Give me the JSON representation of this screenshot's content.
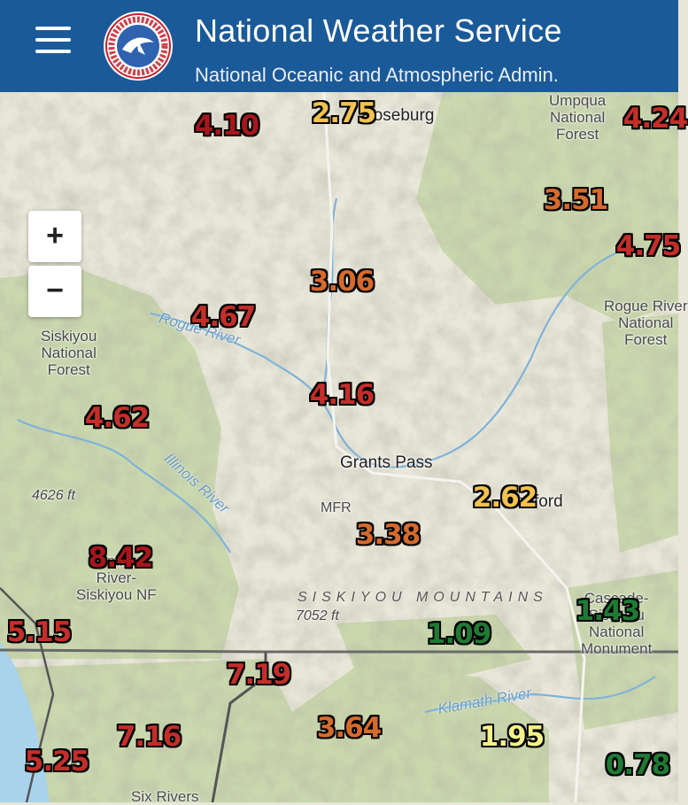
{
  "header": {
    "title": "National Weather Service",
    "subtitle": "National Oceanic and Atmospheric Admin.",
    "logo_text": "NATIONAL WEATHER SERVICE",
    "bg_color": "#1b5a99",
    "menu_icon": "hamburger-menu-icon"
  },
  "map": {
    "zoom_in_label": "+",
    "zoom_out_label": "−",
    "labels": {
      "roseburg": "Roseburg",
      "grants_pass": "Grants Pass",
      "medford": "Medford",
      "mfr": "MFR",
      "siskiyou_nf": "Siskiyou\nNational\nForest",
      "umpqua_nf": "Umpqua\nNational\nForest",
      "rogue_river_nf": "Rogue River\nNational\nForest",
      "rogue_river": "Rogue River",
      "illinois_river": "Illinois River",
      "klamath_river": "Klamath River",
      "siskiyou_mountains": "SISKIYOU MOUNTAINS",
      "elev_4626": "4626 ft",
      "elev_7052": "7052 ft",
      "srsnf": "Smith\nRiver-\nSiskiyou NF",
      "cascade_siskiyou": "Cascade-\nSiskiyou\nNational\nMonument",
      "six_rivers": "Six Rivers"
    },
    "values": [
      {
        "text": "4.10",
        "color": "#a8161c"
      },
      {
        "text": "2.75",
        "color": "#f2c24e"
      },
      {
        "text": "4.24",
        "color": "#c42e2a"
      },
      {
        "text": "3.51",
        "color": "#d66a2c"
      },
      {
        "text": "4.75",
        "color": "#c42e2a"
      },
      {
        "text": "3.06",
        "color": "#d66a2c"
      },
      {
        "text": "4.67",
        "color": "#c42e2a"
      },
      {
        "text": "4.16",
        "color": "#c42e2a"
      },
      {
        "text": "4.62",
        "color": "#c42e2a"
      },
      {
        "text": "2.62",
        "color": "#f2c24e"
      },
      {
        "text": "3.38",
        "color": "#d66a2c"
      },
      {
        "text": "8.42",
        "color": "#a8161c"
      },
      {
        "text": "5.15",
        "color": "#c42e2a"
      },
      {
        "text": "1.09",
        "color": "#1f7a34"
      },
      {
        "text": "1.43",
        "color": "#1f7a34"
      },
      {
        "text": "7.19",
        "color": "#c42e2a"
      },
      {
        "text": "7.16",
        "color": "#c42e2a"
      },
      {
        "text": "3.64",
        "color": "#d66a2c"
      },
      {
        "text": "1.95",
        "color": "#f4f08a"
      },
      {
        "text": "5.25",
        "color": "#c42e2a"
      },
      {
        "text": "0.78",
        "color": "#1f7a34"
      }
    ]
  }
}
